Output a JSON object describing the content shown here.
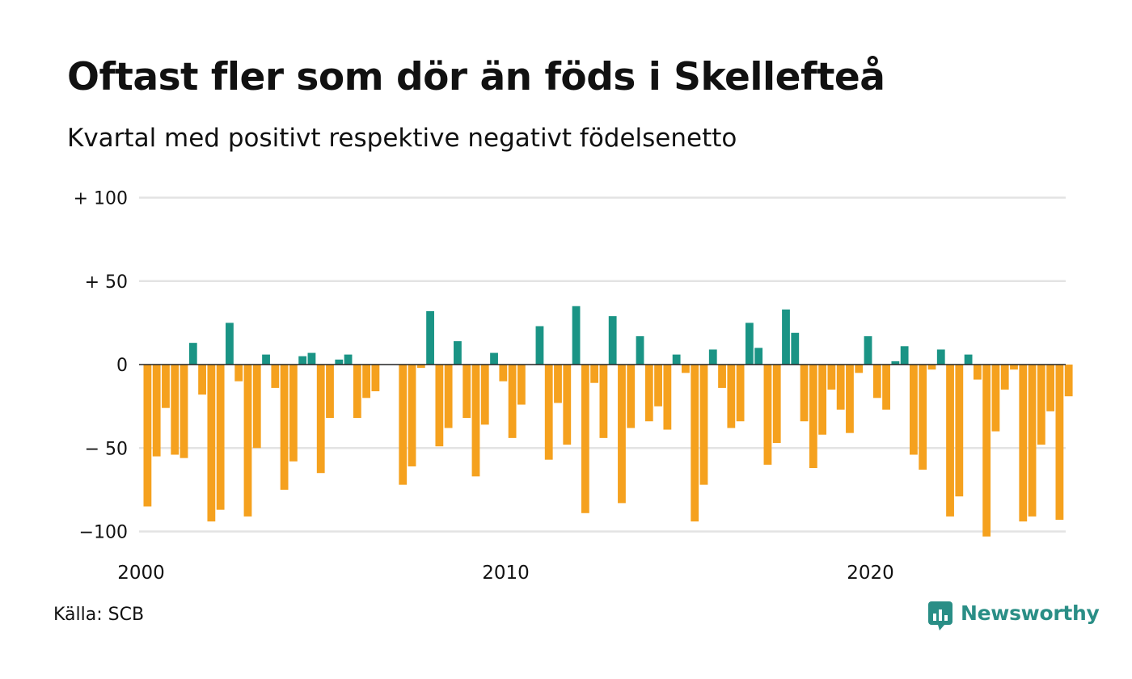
{
  "title": "Oftast fler som dör än föds i Skellefteå",
  "subtitle": "Kvartal med positivt respektive negativt födelsenetto",
  "source": "Källa: SCB",
  "brand": {
    "name": "Newsworthy",
    "icon": "newsworthy-logo-icon"
  },
  "colors": {
    "positive": "#1a9485",
    "negative": "#f5a11e",
    "grid": "#e3e3e3",
    "zero_line": "#222222"
  },
  "chart_data": {
    "type": "bar",
    "x_unit": "quarter",
    "first_quarter": "2000 Q1",
    "y_ticks": [
      {
        "value": 100,
        "label": "+ 100"
      },
      {
        "value": 50,
        "label": "+  50"
      },
      {
        "value": 0,
        "label": "0"
      },
      {
        "value": -50,
        "label": "− 50"
      },
      {
        "value": -100,
        "label": "−100"
      }
    ],
    "x_ticks": [
      {
        "year": 2000,
        "label": "2000"
      },
      {
        "year": 2010,
        "label": "2010"
      },
      {
        "year": 2020,
        "label": "2020"
      }
    ],
    "ylim": [
      -110,
      100
    ],
    "grid": true,
    "values": [
      -85,
      -55,
      -26,
      -54,
      -56,
      13,
      -18,
      -94,
      -87,
      25,
      -10,
      -91,
      -50,
      6,
      -14,
      -75,
      -58,
      5,
      7,
      -65,
      -32,
      3,
      6,
      -32,
      -20,
      -16,
      0,
      0,
      -72,
      -61,
      -2,
      32,
      -49,
      -38,
      14,
      -32,
      -67,
      -36,
      7,
      -10,
      -44,
      -24,
      0,
      23,
      -57,
      -23,
      -48,
      35,
      -89,
      -11,
      -44,
      29,
      -83,
      -38,
      17,
      -34,
      -25,
      -39,
      6,
      -5,
      -94,
      -72,
      9,
      -14,
      -38,
      -34,
      25,
      10,
      -60,
      -47,
      33,
      19,
      -34,
      -62,
      -42,
      -15,
      -27,
      -41,
      -5,
      17,
      -20,
      -27,
      2,
      11,
      -54,
      -63,
      -3,
      9,
      -91,
      -79,
      6,
      -9,
      -103,
      -40,
      -15,
      -3,
      -94,
      -91,
      -48,
      -28,
      -93,
      -19
    ]
  }
}
